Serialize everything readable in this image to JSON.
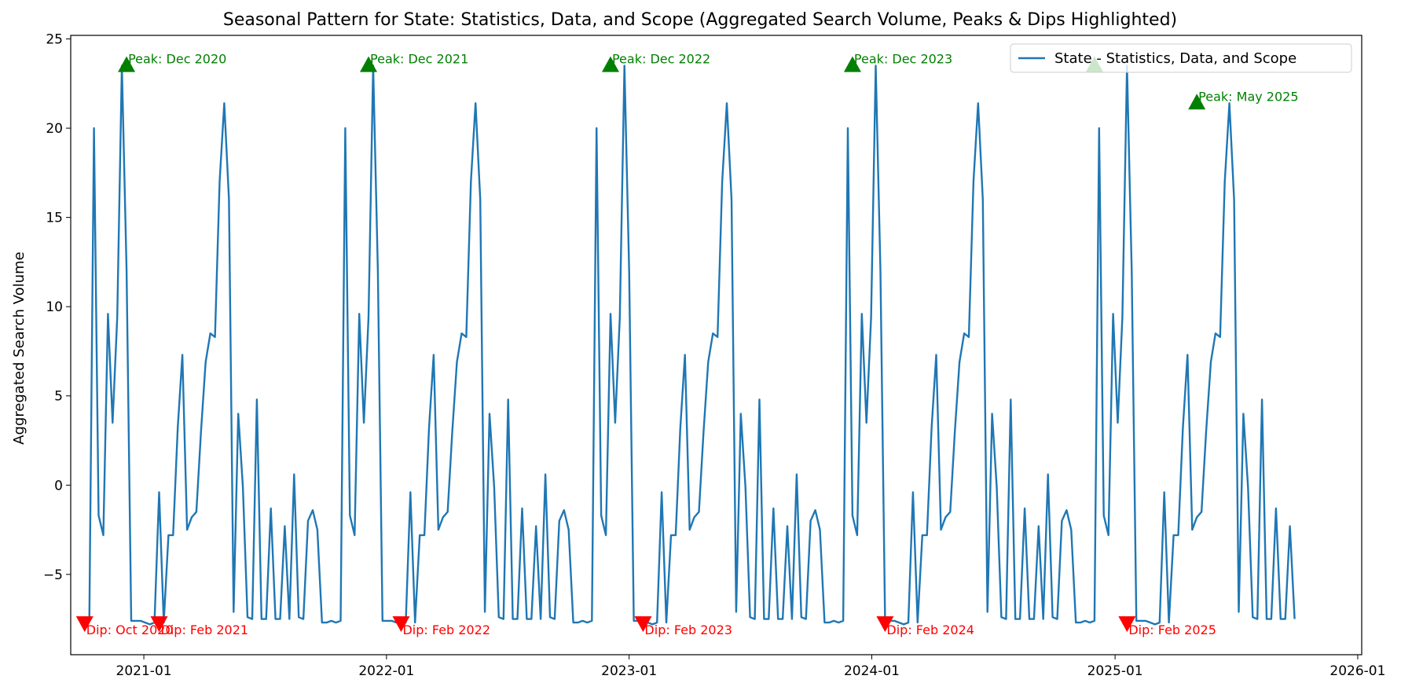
{
  "chart_data": {
    "type": "line",
    "title": "Seasonal Pattern for State: Statistics, Data, and Scope (Aggregated Search Volume, Peaks & Dips Highlighted)",
    "xlabel": "",
    "ylabel": "Aggregated Search Volume",
    "x_ticks": [
      "2021-01",
      "2022-01",
      "2023-01",
      "2024-01",
      "2025-01",
      "2026-01"
    ],
    "y_ticks": [
      "−5",
      "0",
      "5",
      "10",
      "15",
      "20",
      "25"
    ],
    "xlim": [
      "2020-09-13",
      "2026-01-07"
    ],
    "ylim": [
      -9.5,
      25.2
    ],
    "grid": false,
    "legend_position": "top-right",
    "colors": {
      "line": "#1f77b4",
      "peak": "#008000",
      "dip": "#ff0000"
    },
    "series": [
      {
        "name": "State - Statistics, Data, and Scope",
        "start_date": "2020-10-04",
        "cycle_start_index": 0,
        "weekly_values": [
          -7.7,
          -7.6,
          20.0,
          -1.7,
          -2.8,
          9.6,
          3.5,
          9.4,
          23.5,
          12.0,
          -7.6,
          -7.6,
          -7.6,
          -7.7,
          -7.8,
          -7.7,
          -0.4,
          -7.7,
          -2.8,
          -2.8,
          3.2,
          7.3,
          -2.5,
          -1.8,
          -1.5,
          3.0,
          6.9,
          8.5,
          8.3,
          17.0,
          21.4,
          16.0,
          -7.1,
          4.0,
          -0.1,
          -7.4,
          -7.5,
          4.8,
          -7.5,
          -7.5,
          -1.3,
          -7.5,
          -7.5,
          -2.3,
          -7.5,
          0.6,
          -7.4,
          -7.5,
          -2.0,
          -1.4,
          -2.5,
          -7.7,
          -7.7,
          -7.6
        ],
        "peaks": [
          {
            "date": "2020-12-06",
            "value": 23.5,
            "label": "Peak: Dec 2020"
          },
          {
            "date": "2021-12-05",
            "value": 23.5,
            "label": "Peak: Dec 2021"
          },
          {
            "date": "2022-12-04",
            "value": 23.5,
            "label": "Peak: Dec 2022"
          },
          {
            "date": "2023-12-03",
            "value": 23.5,
            "label": "Peak: Dec 2023"
          },
          {
            "date": "2024-12-01",
            "value": 23.5,
            "label": ""
          },
          {
            "date": "2025-05-04",
            "value": 21.4,
            "label": "Peak: May 2025"
          }
        ],
        "dips": [
          {
            "date": "2020-10-04",
            "value": -7.7,
            "label": "Dip: Oct 2020"
          },
          {
            "date": "2021-01-24",
            "value": -7.7,
            "label": "Dip: Feb 2021"
          },
          {
            "date": "2022-01-23",
            "value": -7.7,
            "label": "Dip: Feb 2022"
          },
          {
            "date": "2023-01-22",
            "value": -7.7,
            "label": "Dip: Feb 2023"
          },
          {
            "date": "2024-01-21",
            "value": -7.7,
            "label": "Dip: Feb 2024"
          },
          {
            "date": "2025-01-19",
            "value": -7.7,
            "label": "Dip: Feb 2025"
          }
        ]
      }
    ]
  }
}
